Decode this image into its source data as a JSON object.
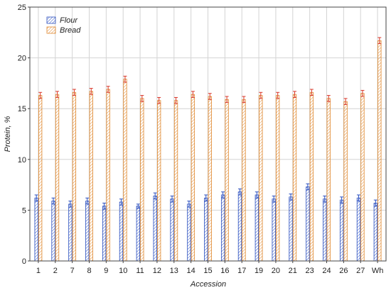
{
  "chart_data": {
    "type": "bar",
    "xlabel": "Accession",
    "ylabel": "Protein, %",
    "ylim": [
      0,
      25
    ],
    "yticks": [
      0,
      5,
      10,
      15,
      20,
      25
    ],
    "grid": true,
    "legend_position": "top-left",
    "categories": [
      "1",
      "2",
      "7",
      "8",
      "9",
      "10",
      "11",
      "12",
      "13",
      "14",
      "15",
      "16",
      "17",
      "19",
      "20",
      "21",
      "23",
      "24",
      "26",
      "27",
      "Wh"
    ],
    "series": [
      {
        "name": "Flour",
        "color": "#2b4fbf",
        "values": [
          6.2,
          5.9,
          5.6,
          5.9,
          5.4,
          5.8,
          5.4,
          6.4,
          6.1,
          5.6,
          6.2,
          6.5,
          6.8,
          6.5,
          6.1,
          6.3,
          7.3,
          6.1,
          6.0,
          6.2,
          5.7
        ],
        "errors": [
          0.3,
          0.3,
          0.3,
          0.3,
          0.3,
          0.3,
          0.2,
          0.3,
          0.3,
          0.3,
          0.3,
          0.3,
          0.3,
          0.3,
          0.3,
          0.3,
          0.3,
          0.3,
          0.3,
          0.3,
          0.3
        ]
      },
      {
        "name": "Bread",
        "color": "#e0882e",
        "values": [
          16.3,
          16.4,
          16.6,
          16.7,
          16.9,
          17.9,
          16.0,
          15.8,
          15.8,
          16.4,
          16.2,
          15.9,
          15.9,
          16.3,
          16.3,
          16.4,
          16.6,
          16.0,
          15.7,
          16.5,
          21.7
        ],
        "errors": [
          0.3,
          0.3,
          0.3,
          0.3,
          0.3,
          0.3,
          0.3,
          0.3,
          0.3,
          0.3,
          0.3,
          0.3,
          0.3,
          0.3,
          0.3,
          0.3,
          0.3,
          0.3,
          0.3,
          0.3,
          0.3
        ]
      }
    ]
  }
}
